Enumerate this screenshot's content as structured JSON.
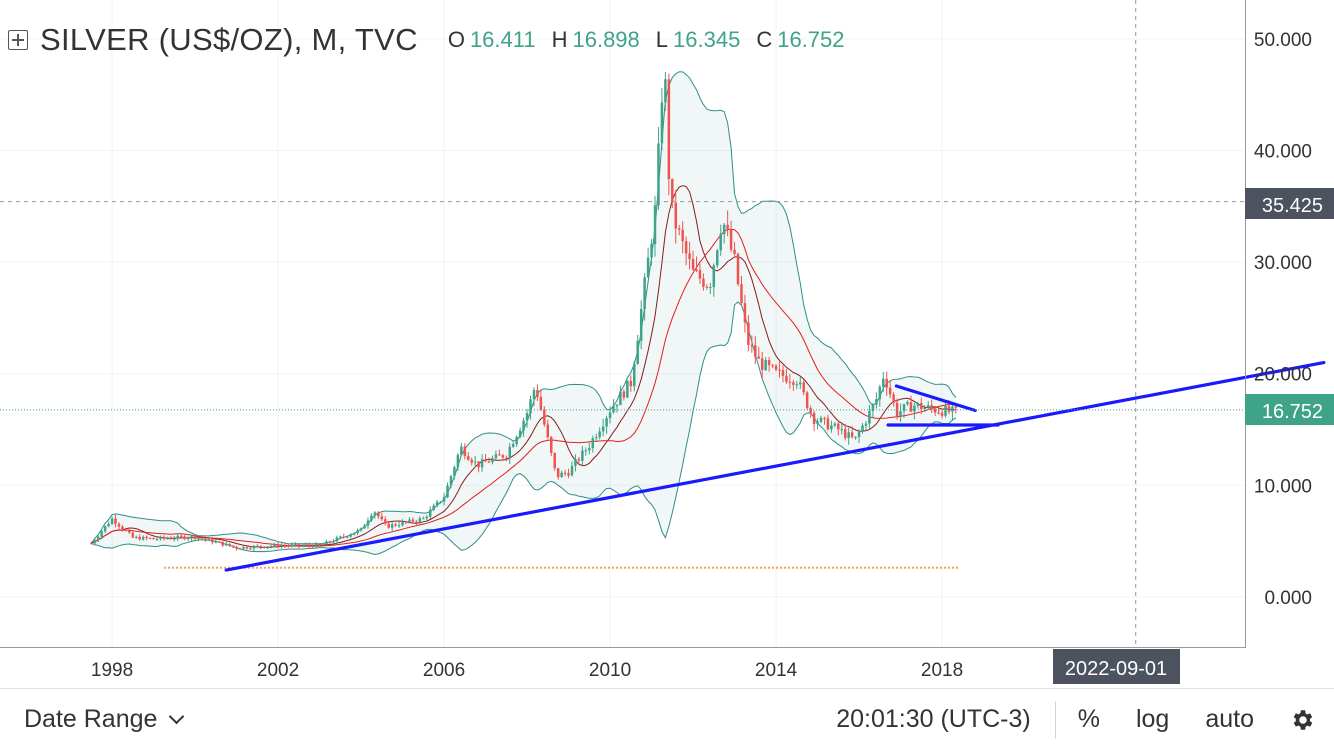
{
  "header": {
    "title": "SILVER (US$/OZ), M, TVC",
    "ohlc": [
      {
        "key": "O",
        "value": "16.411"
      },
      {
        "key": "H",
        "value": "16.898"
      },
      {
        "key": "L",
        "value": "16.345"
      },
      {
        "key": "C",
        "value": "16.752"
      }
    ]
  },
  "price_axis": {
    "crosshair_label": "35.425",
    "last_price_label": "16.752"
  },
  "time_axis": {
    "crosshair_label": "2022-09-01"
  },
  "bottom_bar": {
    "date_range_label": "Date Range",
    "clock": "20:01:30 (UTC-3)",
    "percent_label": "%",
    "log_label": "log",
    "auto_label": "auto"
  },
  "colors": {
    "up": "#3ea387",
    "down": "#ef5350",
    "trendline": "#1a1aff",
    "sma_short": "#8b1a1a",
    "sma_long": "#e31e1e",
    "band": "#2f8f86",
    "last_price_bg": "#3ea387",
    "crosshair_bg": "#4c525e"
  },
  "chart_data": {
    "type": "candlestick",
    "symbol": "SILVER (US$/OZ)",
    "interval": "M",
    "source": "TVC",
    "x_ticks": [
      "1998",
      "2002",
      "2006",
      "2010",
      "2014",
      "2018"
    ],
    "y_ticks": [
      "0.000",
      "10.000",
      "20.000",
      "30.000",
      "40.000",
      "50.000"
    ],
    "xlim": [
      1995.3,
      2025.3
    ],
    "ylim": [
      -4.5,
      53.5
    ],
    "last_price": 16.752,
    "crosshair": {
      "x": "2022-09-01",
      "y": 35.425
    },
    "anchors": [
      [
        1997.5,
        4.8
      ],
      [
        1998.0,
        7.0
      ],
      [
        1998.5,
        5.3
      ],
      [
        1999.0,
        5.2
      ],
      [
        2000.0,
        5.4
      ],
      [
        2001.0,
        4.4
      ],
      [
        2002.0,
        4.6
      ],
      [
        2003.0,
        4.6
      ],
      [
        2004.0,
        6.0
      ],
      [
        2004.3,
        7.8
      ],
      [
        2004.6,
        6.3
      ],
      [
        2005.5,
        7.0
      ],
      [
        2006.0,
        9.0
      ],
      [
        2006.4,
        13.4
      ],
      [
        2006.8,
        11.8
      ],
      [
        2007.5,
        12.8
      ],
      [
        2008.0,
        16.5
      ],
      [
        2008.2,
        19.0
      ],
      [
        2008.7,
        10.8
      ],
      [
        2009.0,
        11.2
      ],
      [
        2009.5,
        13.6
      ],
      [
        2010.0,
        16.8
      ],
      [
        2010.5,
        19.2
      ],
      [
        2010.8,
        27.0
      ],
      [
        2011.1,
        35.0
      ],
      [
        2011.3,
        48.6
      ],
      [
        2011.45,
        35.0
      ],
      [
        2011.7,
        32.0
      ],
      [
        2012.0,
        29.0
      ],
      [
        2012.4,
        28.0
      ],
      [
        2012.7,
        34.0
      ],
      [
        2013.0,
        30.0
      ],
      [
        2013.3,
        23.0
      ],
      [
        2013.6,
        21.0
      ],
      [
        2014.0,
        20.0
      ],
      [
        2014.5,
        19.5
      ],
      [
        2014.9,
        16.0
      ],
      [
        2015.5,
        15.0
      ],
      [
        2015.9,
        14.0
      ],
      [
        2016.4,
        17.5
      ],
      [
        2016.6,
        20.0
      ],
      [
        2016.9,
        16.5
      ],
      [
        2017.3,
        17.2
      ],
      [
        2017.8,
        16.8
      ],
      [
        2018.4,
        16.5
      ]
    ],
    "trendlines": [
      {
        "x": [
          2000.75,
          2027.2
        ],
        "y": [
          2.4,
          21.0
        ]
      },
      {
        "x": [
          2016.9,
          2018.8
        ],
        "y": [
          18.9,
          16.7
        ]
      },
      {
        "x": [
          2016.7,
          2019.35
        ],
        "y": [
          15.4,
          15.4
        ]
      }
    ],
    "horizontal_line": {
      "y": 2.6,
      "x": [
        1999.25,
        2018.4
      ]
    },
    "grid": true
  }
}
